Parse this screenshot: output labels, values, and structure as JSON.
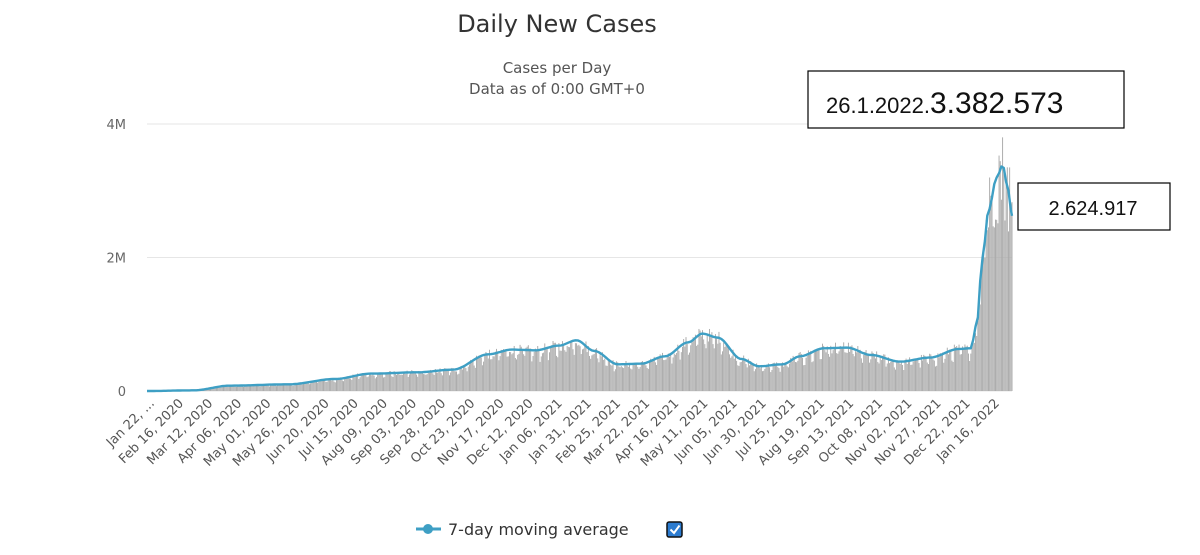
{
  "chart_data": {
    "type": "bar",
    "title": "Daily New Cases",
    "subtitle": "Cases per Day",
    "subtitle2": "Data as of 0:00 GMT+0",
    "ylabel": "",
    "xlabel": "",
    "ylim": [
      0,
      4000000
    ],
    "yticks": [
      {
        "value": 0,
        "label": "0"
      },
      {
        "value": 2000000,
        "label": "2M"
      },
      {
        "value": 4000000,
        "label": "4M"
      }
    ],
    "x_start": "Jan 22, 2020",
    "x_end": "Jan 26, 2022",
    "tick_labels": [
      "Jan 22, ...",
      "Feb 16, 2020",
      "Mar 12, 2020",
      "Apr 06, 2020",
      "May 01, 2020",
      "May 26, 2020",
      "Jun 20, 2020",
      "Jul 15, 2020",
      "Aug 09, 2020",
      "Sep 03, 2020",
      "Sep 28, 2020",
      "Oct 23, 2020",
      "Nov 17, 2020",
      "Dec 12, 2020",
      "Jan 06, 2021",
      "Jan 31, 2021",
      "Feb 25, 2021",
      "Mar 22, 2021",
      "Apr 16, 2021",
      "May 11, 2021",
      "Jun 05, 2021",
      "Jun 30, 2021",
      "Jul 25, 2021",
      "Aug 19, 2021",
      "Sep 13, 2021",
      "Oct 08, 2021",
      "Nov 02, 2021",
      "Nov 27, 2021",
      "Dec 22, 2021",
      "Jan 16, 2022"
    ],
    "daily_cases_key_points": [
      {
        "day": 0,
        "value": 0
      },
      {
        "day": 40,
        "value": 10000
      },
      {
        "day": 70,
        "value": 80000
      },
      {
        "day": 120,
        "value": 100000
      },
      {
        "day": 160,
        "value": 180000
      },
      {
        "day": 190,
        "value": 260000
      },
      {
        "day": 230,
        "value": 280000
      },
      {
        "day": 260,
        "value": 320000
      },
      {
        "day": 290,
        "value": 550000
      },
      {
        "day": 310,
        "value": 620000
      },
      {
        "day": 330,
        "value": 610000
      },
      {
        "day": 350,
        "value": 680000
      },
      {
        "day": 365,
        "value": 760000
      },
      {
        "day": 380,
        "value": 600000
      },
      {
        "day": 400,
        "value": 400000
      },
      {
        "day": 420,
        "value": 410000
      },
      {
        "day": 440,
        "value": 520000
      },
      {
        "day": 460,
        "value": 730000
      },
      {
        "day": 472,
        "value": 860000
      },
      {
        "day": 485,
        "value": 800000
      },
      {
        "day": 505,
        "value": 480000
      },
      {
        "day": 520,
        "value": 370000
      },
      {
        "day": 540,
        "value": 400000
      },
      {
        "day": 555,
        "value": 520000
      },
      {
        "day": 575,
        "value": 640000
      },
      {
        "day": 595,
        "value": 650000
      },
      {
        "day": 615,
        "value": 540000
      },
      {
        "day": 640,
        "value": 440000
      },
      {
        "day": 665,
        "value": 500000
      },
      {
        "day": 690,
        "value": 630000
      },
      {
        "day": 700,
        "value": 640000
      },
      {
        "day": 705,
        "value": 1000000
      },
      {
        "day": 710,
        "value": 2000000
      },
      {
        "day": 715,
        "value": 2700000
      },
      {
        "day": 722,
        "value": 3200000
      },
      {
        "day": 727,
        "value": 3382573
      },
      {
        "day": 732,
        "value": 3000000
      },
      {
        "day": 735,
        "value": 2624917
      }
    ],
    "series": [
      {
        "name": "Daily New Cases",
        "type": "bar",
        "color": "#a9a9a9"
      },
      {
        "name": "7-day moving average",
        "type": "line",
        "color": "#3e9fc4"
      }
    ],
    "annotations": [
      {
        "label_small": "26.1.2022.",
        "label_big": "3.382.573",
        "value": 3382573
      },
      {
        "label": "2.624.917",
        "value": 2624917
      }
    ]
  },
  "legend": {
    "label": "7-day moving average",
    "checked": true
  }
}
